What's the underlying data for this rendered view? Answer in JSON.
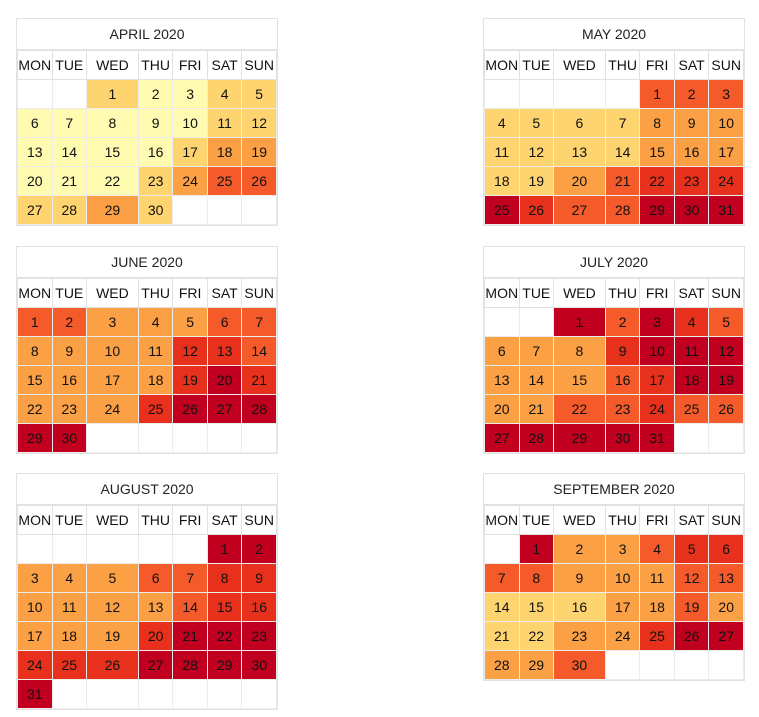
{
  "weekday_headers": [
    "MON",
    "TUE",
    "WED",
    "THU",
    "FRI",
    "SAT",
    "SUN"
  ],
  "colors": {
    "1": "#fffbb0",
    "2": "#fdd470",
    "3": "#fba045",
    "4": "#f55a2a",
    "5": "#e8311c",
    "6": "#c0001e"
  },
  "calendars": [
    {
      "title": "APRIL 2020",
      "start_weekday": 2,
      "days": 30,
      "levels": [
        2,
        1,
        1,
        2,
        2,
        1,
        1,
        1,
        1,
        1,
        2,
        2,
        1,
        1,
        1,
        1,
        2,
        3,
        3,
        1,
        1,
        1,
        2,
        3,
        4,
        4,
        2,
        2,
        3,
        2
      ]
    },
    {
      "title": "MAY 2020",
      "start_weekday": 4,
      "days": 31,
      "levels": [
        4,
        4,
        4,
        2,
        2,
        2,
        2,
        3,
        3,
        3,
        2,
        2,
        2,
        2,
        3,
        3,
        3,
        2,
        2,
        3,
        4,
        5,
        5,
        5,
        6,
        5,
        4,
        4,
        6,
        6,
        6
      ]
    },
    {
      "title": "JUNE 2020",
      "start_weekday": 0,
      "days": 30,
      "levels": [
        4,
        4,
        3,
        3,
        3,
        4,
        4,
        3,
        3,
        3,
        3,
        5,
        5,
        4,
        3,
        3,
        3,
        3,
        5,
        6,
        5,
        3,
        3,
        3,
        5,
        6,
        6,
        6,
        6,
        6
      ]
    },
    {
      "title": "JULY 2020",
      "start_weekday": 2,
      "days": 31,
      "levels": [
        6,
        4,
        6,
        5,
        4,
        3,
        3,
        3,
        5,
        6,
        6,
        6,
        3,
        3,
        3,
        4,
        5,
        6,
        6,
        3,
        3,
        4,
        4,
        5,
        4,
        4,
        6,
        6,
        6,
        6,
        6
      ]
    },
    {
      "title": "AUGUST 2020",
      "start_weekday": 5,
      "days": 31,
      "levels": [
        6,
        6,
        3,
        3,
        3,
        4,
        4,
        5,
        5,
        3,
        3,
        3,
        3,
        4,
        5,
        5,
        3,
        3,
        3,
        5,
        6,
        6,
        6,
        5,
        5,
        5,
        6,
        6,
        6,
        6,
        6
      ]
    },
    {
      "title": "SEPTEMBER 2020",
      "start_weekday": 1,
      "days": 30,
      "levels": [
        6,
        3,
        3,
        4,
        5,
        5,
        4,
        4,
        3,
        3,
        3,
        4,
        4,
        2,
        2,
        2,
        3,
        3,
        4,
        3,
        2,
        2,
        3,
        3,
        5,
        6,
        6,
        3,
        3,
        4
      ]
    }
  ]
}
